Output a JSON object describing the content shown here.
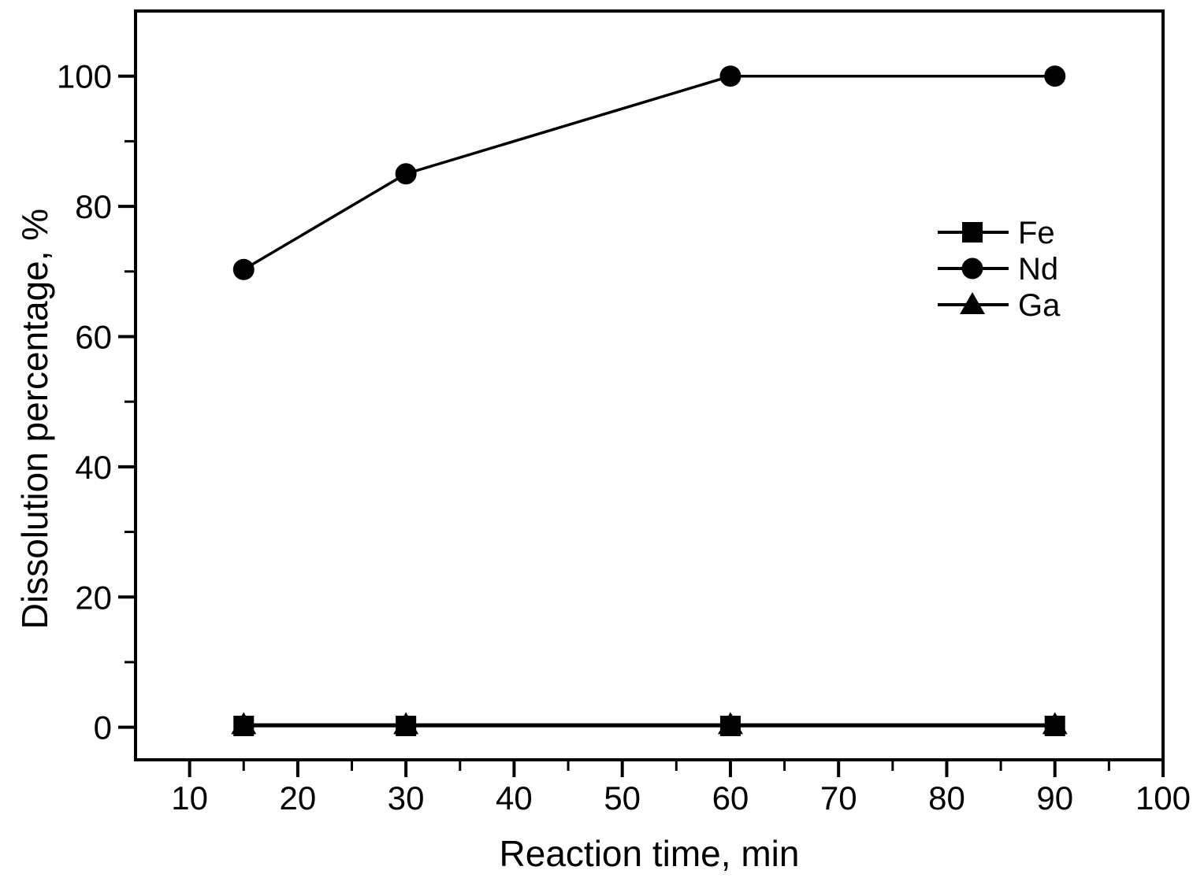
{
  "figure": {
    "background": "#ffffff",
    "foreground": "#000000"
  },
  "chart_data": {
    "type": "line",
    "title": "",
    "xlabel": "Reaction time, min",
    "ylabel": "Dissolution percentage, %",
    "xlim": [
      5,
      100
    ],
    "ylim": [
      -5,
      110
    ],
    "x_major_ticks": [
      10,
      20,
      30,
      40,
      50,
      60,
      70,
      80,
      90,
      100
    ],
    "x_minor_ticks": [
      15,
      25,
      35,
      45,
      55,
      65,
      75,
      85,
      95
    ],
    "y_major_ticks": [
      0,
      20,
      40,
      60,
      80,
      100
    ],
    "y_minor_ticks": [
      10,
      30,
      50,
      70,
      90
    ],
    "grid": false,
    "legend_position": "inside upper right",
    "x": [
      15,
      30,
      60,
      90
    ],
    "series": [
      {
        "name": "Fe",
        "marker": "square",
        "color": "#000000",
        "values": [
          0.2,
          0.2,
          0.2,
          0.2
        ]
      },
      {
        "name": "Nd",
        "marker": "circle",
        "color": "#000000",
        "values": [
          70.3,
          85,
          100,
          100
        ]
      },
      {
        "name": "Ga",
        "marker": "triangle",
        "color": "#000000",
        "values": [
          0.4,
          0.4,
          0.4,
          0.4
        ]
      }
    ]
  }
}
